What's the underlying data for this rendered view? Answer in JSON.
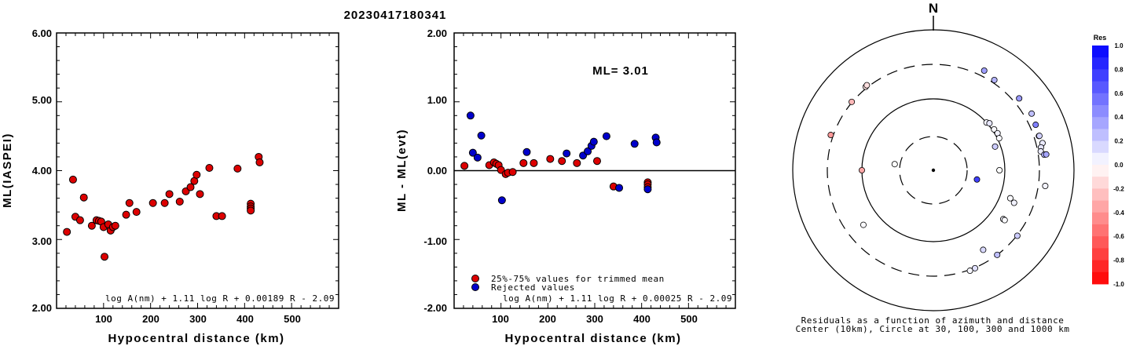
{
  "figure_title": "20230417180341",
  "chart_data": [
    {
      "type": "scatter",
      "id": "left",
      "ylabel": "ML(IASPEI)",
      "xlabel": "Hypocentral distance (km)",
      "xlim": [
        0,
        600
      ],
      "ylim": [
        2.0,
        6.0
      ],
      "xticks": [
        "100",
        "200",
        "300",
        "400",
        "500"
      ],
      "yticks": [
        "2.00",
        "3.00",
        "4.00",
        "5.00",
        "6.00"
      ],
      "formula": "log A(nm) + 1.11 log R + 0.00189 R - 2.09",
      "series": [
        {
          "color": "#dd0000",
          "points": [
            [
              22,
              3.11
            ],
            [
              35,
              3.87
            ],
            [
              40,
              3.33
            ],
            [
              50,
              3.28
            ],
            [
              58,
              3.61
            ],
            [
              75,
              3.2
            ],
            [
              85,
              3.28
            ],
            [
              90,
              3.27
            ],
            [
              95,
              3.26
            ],
            [
              100,
              3.18
            ],
            [
              102,
              2.75
            ],
            [
              110,
              3.22
            ],
            [
              115,
              3.13
            ],
            [
              120,
              3.18
            ],
            [
              125,
              3.2
            ],
            [
              148,
              3.36
            ],
            [
              155,
              3.53
            ],
            [
              170,
              3.4
            ],
            [
              205,
              3.53
            ],
            [
              230,
              3.53
            ],
            [
              240,
              3.66
            ],
            [
              262,
              3.55
            ],
            [
              275,
              3.7
            ],
            [
              285,
              3.76
            ],
            [
              293,
              3.85
            ],
            [
              298,
              3.94
            ],
            [
              305,
              3.66
            ],
            [
              325,
              4.04
            ],
            [
              340,
              3.34
            ],
            [
              352,
              3.34
            ],
            [
              385,
              4.03
            ],
            [
              413,
              3.52
            ],
            [
              413,
              3.48
            ],
            [
              413,
              3.45
            ],
            [
              413,
              3.42
            ],
            [
              430,
              4.2
            ],
            [
              432,
              4.12
            ]
          ]
        }
      ]
    },
    {
      "type": "scatter",
      "id": "middle",
      "ylabel": "ML - ML(evt)",
      "xlabel": "Hypocentral distance (km)",
      "xlim": [
        0,
        600
      ],
      "ylim": [
        -2.0,
        2.0
      ],
      "xticks": [
        "100",
        "200",
        "300",
        "400",
        "500"
      ],
      "yticks": [
        "-2.00",
        "-1.00",
        "0.00",
        "1.00",
        "2.00"
      ],
      "annotation": "ML= 3.01",
      "formula": "log A(nm) + 1.11 log R + 0.00025 R - 2.09",
      "series": [
        {
          "name": "25%-75% values for trimmed mean",
          "color": "#dd0000",
          "points": [
            [
              22,
              0.07
            ],
            [
              75,
              0.08
            ],
            [
              85,
              0.12
            ],
            [
              90,
              0.1
            ],
            [
              95,
              0.08
            ],
            [
              100,
              0.01
            ],
            [
              110,
              -0.05
            ],
            [
              115,
              -0.03
            ],
            [
              125,
              -0.02
            ],
            [
              148,
              0.11
            ],
            [
              170,
              0.11
            ],
            [
              205,
              0.17
            ],
            [
              230,
              0.14
            ],
            [
              262,
              0.11
            ],
            [
              305,
              0.14
            ],
            [
              340,
              -0.23
            ],
            [
              413,
              -0.17
            ],
            [
              413,
              -0.2
            ],
            [
              413,
              -0.24
            ]
          ]
        },
        {
          "name": "Rejected values",
          "color": "#0000cc",
          "points": [
            [
              35,
              0.8
            ],
            [
              40,
              0.26
            ],
            [
              50,
              0.19
            ],
            [
              58,
              0.51
            ],
            [
              102,
              -0.43
            ],
            [
              155,
              0.27
            ],
            [
              240,
              0.25
            ],
            [
              275,
              0.22
            ],
            [
              285,
              0.28
            ],
            [
              293,
              0.36
            ],
            [
              298,
              0.42
            ],
            [
              325,
              0.5
            ],
            [
              352,
              -0.25
            ],
            [
              385,
              0.39
            ],
            [
              413,
              -0.27
            ],
            [
              430,
              0.48
            ],
            [
              432,
              0.41
            ]
          ]
        }
      ]
    },
    {
      "type": "polar-scatter",
      "id": "right",
      "north_label": "N",
      "caption_line1": "Residuals as a function of azimuth and distance",
      "caption_line2": "Center (10km), Circle at 30, 100, 300 and 1000 km",
      "rings_km": [
        30,
        100,
        300,
        1000
      ],
      "colorbar": {
        "title": "Res",
        "ticks": [
          "1.0",
          "0.8",
          "0.6",
          "0.4",
          "0.2",
          "0.0",
          "-0.2",
          "-0.4",
          "-0.6",
          "-0.8",
          "-1.0"
        ],
        "range": [
          -1.0,
          1.0
        ]
      },
      "points": [
        {
          "az": -39,
          "dist": 330,
          "res": -0.1
        },
        {
          "az": -38,
          "dist": 340,
          "res": -0.12
        },
        {
          "az": -50,
          "dist": 310,
          "res": -0.28
        },
        {
          "az": -71,
          "dist": 350,
          "res": -0.4
        },
        {
          "az": -90,
          "dist": 100,
          "res": -0.35
        },
        {
          "az": -81,
          "dist": 40,
          "res": 0.0
        },
        {
          "az": 90,
          "dist": 90,
          "res": 0.0
        },
        {
          "az": 102,
          "dist": 50,
          "res": 0.75
        },
        {
          "az": -128,
          "dist": 200,
          "res": 0.02
        },
        {
          "az": 34,
          "dist": 360,
          "res": 0.3
        },
        {
          "az": 27,
          "dist": 420,
          "res": 0.38
        },
        {
          "az": 48,
          "dist": 100,
          "res": 0.04
        },
        {
          "az": 50,
          "dist": 110,
          "res": 0.1
        },
        {
          "az": 56,
          "dist": 110,
          "res": 0.02
        },
        {
          "az": 60,
          "dist": 115,
          "res": 0.05
        },
        {
          "az": 64,
          "dist": 110,
          "res": 0.02
        },
        {
          "az": 69,
          "dist": 90,
          "res": 0.2
        },
        {
          "az": 50,
          "dist": 420,
          "res": 0.4
        },
        {
          "az": 60,
          "dist": 450,
          "res": 0.25
        },
        {
          "az": 66,
          "dist": 420,
          "res": 0.5
        },
        {
          "az": 72,
          "dist": 400,
          "res": 0.2
        },
        {
          "az": 72,
          "dist": 410,
          "res": 0.18
        },
        {
          "az": 76,
          "dist": 430,
          "res": 0.08
        },
        {
          "az": 78,
          "dist": 380,
          "res": 0.1
        },
        {
          "az": 80,
          "dist": 360,
          "res": 0.08
        },
        {
          "az": 82,
          "dist": 420,
          "res": 0.3
        },
        {
          "az": 82,
          "dist": 460,
          "res": 0.35
        },
        {
          "az": 98,
          "dist": 440,
          "res": 0.05
        },
        {
          "az": 112,
          "dist": 190,
          "res": 0.05
        },
        {
          "az": 110,
          "dist": 160,
          "res": 0.02
        },
        {
          "az": 125,
          "dist": 180,
          "res": 0.04
        },
        {
          "az": 125,
          "dist": 190,
          "res": 0.02
        },
        {
          "az": 128,
          "dist": 310,
          "res": 0.2
        },
        {
          "az": 143,
          "dist": 300,
          "res": 0.25
        },
        {
          "az": 148,
          "dist": 230,
          "res": 0.15
        },
        {
          "az": 157,
          "dist": 310,
          "res": 0.12
        },
        {
          "az": 160,
          "dist": 320,
          "res": 0.03
        }
      ]
    }
  ]
}
